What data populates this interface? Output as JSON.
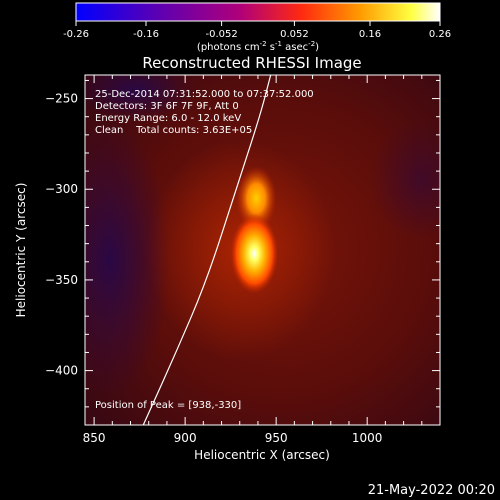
{
  "chart_data": {
    "type": "heatmap",
    "title": "Reconstructed RHESSI Image",
    "xlabel": "Heliocentric X (arcsec)",
    "ylabel": "Heliocentric Y (arcsec)",
    "xlim": [
      845,
      1040
    ],
    "ylim": [
      -430,
      -237
    ],
    "x_ticks": [
      850,
      900,
      950,
      1000
    ],
    "y_ticks": [
      -250,
      -300,
      -350,
      -400
    ],
    "colorbar": {
      "range": [
        -0.26,
        0.26
      ],
      "ticks": [
        "-0.26",
        "-0.16",
        "-0.052",
        "0.052",
        "0.16",
        "0.26"
      ],
      "unit_label": "(photons cm",
      "unit_exp1": "-2",
      "unit_mid": " s",
      "unit_exp2": "-1",
      "unit_mid2": " asec",
      "unit_exp3": "-2",
      "unit_end": ")",
      "colormap": "thermal (blue-purple-red-orange-yellow-white)"
    },
    "annotations": [
      "25-Dec-2014 07:31:52.000 to 07:37:52.000",
      "Detectors: 3F 6F 7F 9F, Att 0",
      "Energy Range: 6.0 - 12.0 keV",
      "Clean    Total counts: 3.63E+05"
    ],
    "peak_label": "Position of Peak = [938,-330]",
    "peak": [
      938,
      -330
    ],
    "secondary_source": [
      938,
      -305
    ],
    "limb_curve": [
      [
        877,
        -430
      ],
      [
        895,
        -390
      ],
      [
        912,
        -350
      ],
      [
        928,
        -300
      ],
      [
        941,
        -260
      ],
      [
        947,
        -237
      ]
    ]
  },
  "footer_date": "21-May-2022 00:20"
}
